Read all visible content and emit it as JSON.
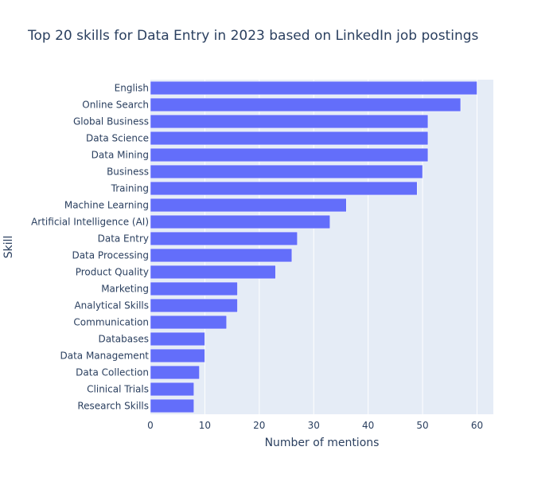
{
  "chart_data": {
    "type": "bar",
    "orientation": "horizontal",
    "title": "Top 20 skills for Data Entry in 2023 based on LinkedIn job postings",
    "xlabel": "Number of mentions",
    "ylabel": "Skill",
    "xlim": [
      0,
      63
    ],
    "xticks": [
      0,
      10,
      20,
      30,
      40,
      50,
      60
    ],
    "grid": true,
    "legend": "none",
    "bar_color": "#636efa",
    "plot_background": "#e5ecf6",
    "categories": [
      "English",
      "Online Search",
      "Global Business",
      "Data Science",
      "Data Mining",
      "Business",
      "Training",
      "Machine Learning",
      "Artificial Intelligence (AI)",
      "Data Entry",
      "Data Processing",
      "Product Quality",
      "Marketing",
      "Analytical Skills",
      "Communication",
      "Databases",
      "Data Management",
      "Data Collection",
      "Clinical Trials",
      "Research Skills"
    ],
    "values": [
      60,
      57,
      51,
      51,
      51,
      50,
      49,
      36,
      33,
      27,
      26,
      23,
      16,
      16,
      14,
      10,
      10,
      9,
      8,
      8
    ]
  }
}
